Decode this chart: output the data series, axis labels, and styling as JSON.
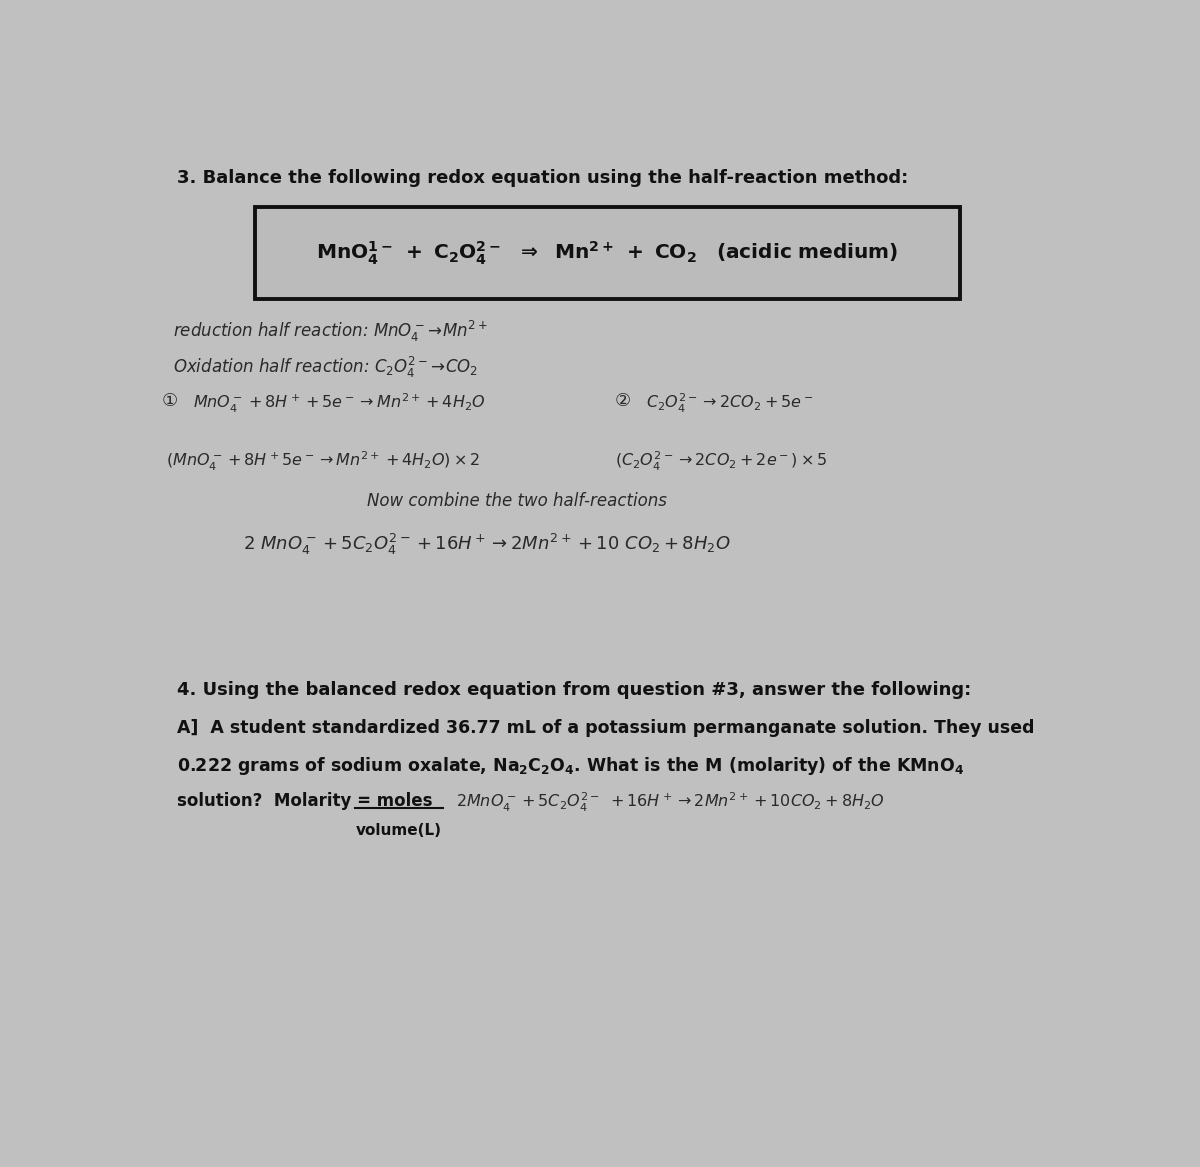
{
  "bg_color": "#c0c0c0",
  "title_q3": "3. Balance the following redox equation using the half-reaction method:",
  "title_q4": "4. Using the balanced redox equation from question #3, answer the following:",
  "q4_a_line1": "A]  A student standardized 36.77 mL of a potassium permanganate solution. They used",
  "handwriting_color": "#2a2a2a",
  "print_color": "#111111"
}
